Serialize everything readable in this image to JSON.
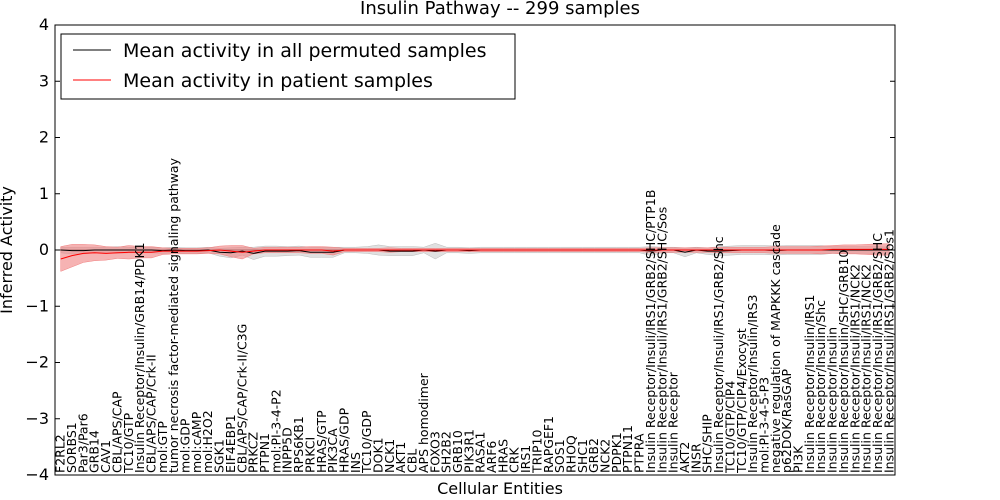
{
  "chart_data": {
    "type": "line",
    "title": "Insulin Pathway -- 299 samples",
    "xlabel": "Cellular Entities",
    "ylabel": "Inferred Activity",
    "ylim": [
      -4,
      4
    ],
    "yticks": [
      -4,
      -3,
      -2,
      -1,
      0,
      1,
      2,
      3,
      4
    ],
    "ytick_labels": [
      "−4",
      "−3",
      "−2",
      "−1",
      "0",
      "1",
      "2",
      "3",
      "4"
    ],
    "legend_position": "top-left",
    "categories": [
      "F2RL2",
      "SORBS1",
      "Par3/Par6",
      "GRB14",
      "CAV1",
      "CBL/APS/CAP",
      "TC10/GTP",
      "Insulin Receptor/Insulin/GRB14/PDK1",
      "CBL/APS/CAP/Crk-II",
      "mol:GTP",
      "tumor necrosis factor-mediated signaling pathway",
      "mol:GDP",
      "mol:cAMP",
      "mol:H2O2",
      "SGK1",
      "EIF4EBP1",
      "CBL/APS/CAP/Crk-II/C3G",
      "PRKCZ",
      "PTPN1",
      "mol:PI-3-4-P2",
      "INPP5D",
      "RPS6KB1",
      "PRKCI",
      "HRAS/GTP",
      "PIK3CA",
      "HRAS/GDP",
      "INS",
      "TC10/GDP",
      "DOK1",
      "NCK1",
      "AKT1",
      "CBL",
      "APS homodimer",
      "FOXO3",
      "SH2B2",
      "GRB10",
      "PIK3R1",
      "RASA1",
      "ARF6",
      "HRAS",
      "CRK",
      "IRS1",
      "TRIP10",
      "RAPGEF1",
      "SOS1",
      "RHOQ",
      "SHC1",
      "GRB2",
      "NCK2",
      "PDPK1",
      "PTPN11",
      "PTPRA",
      "Insulin Receptor/Insuli/IRS1/GRB2/SHC/PTP1B",
      "Insulin Receptor/Insuli/IRS1/GRB2/SHC/Sos",
      "Insulin Receptor",
      "AKT2",
      "INSR",
      "SHC/SHIP",
      "Insulin Receptor/Insuli/IRS1/GRB2/Shc",
      "TC10/GTP/CIP4",
      "TC10/GTP/CIP4/Exocyst",
      "Insulin Receptor/Insulin/IRS3",
      "mol:PI-3-4-5-P3",
      "negative regulation of MAPKKK cascade",
      "p62DOK/RasGAP",
      "PI3K",
      "Insulin Receptor/Insulin/IRS1",
      "Insulin Receptor/Insulin/Shc",
      "Insulin Receptor/Insulin",
      "Insulin Receptor/Insulin/SHC/GRB10",
      "Insulin Receptor/Insuli/IRS1/NCK2",
      "Insulin Receptor/Insuli/IRS1/NCK2",
      "Insulin Receptor/Insuli/IRS1/GRB2/SHC",
      "Insulin Receptor/Insuli/IRS1/GRB2/Sos1"
    ],
    "series": [
      {
        "name": "Mean activity in all permuted samples",
        "color": "#000000",
        "band_color": "#bbbbbb",
        "values": [
          0.0,
          -0.01,
          -0.01,
          0.0,
          0.0,
          0.0,
          0.0,
          0.0,
          0.0,
          -0.01,
          0.0,
          -0.01,
          -0.01,
          0.0,
          -0.04,
          -0.05,
          -0.02,
          -0.06,
          -0.02,
          -0.02,
          -0.02,
          -0.01,
          -0.04,
          -0.04,
          -0.04,
          0.0,
          0.0,
          0.0,
          0.0,
          -0.02,
          -0.02,
          -0.02,
          0.0,
          -0.02,
          0.0,
          0.0,
          -0.01,
          0.0,
          0.0,
          0.0,
          0.0,
          0.0,
          0.0,
          0.0,
          0.0,
          0.0,
          0.0,
          0.0,
          0.0,
          0.0,
          0.0,
          0.0,
          -0.02,
          0.0,
          0.0,
          -0.04,
          0.0,
          -0.02,
          -0.02,
          -0.01,
          0.0,
          0.0,
          0.0,
          -0.01,
          0.0,
          0.0,
          0.0,
          0.0,
          0.0,
          0.0,
          0.0,
          0.0,
          0.0,
          0.0
        ],
        "band": [
          0.05,
          0.06,
          0.06,
          0.05,
          0.05,
          0.06,
          0.05,
          0.05,
          0.05,
          0.05,
          0.05,
          0.05,
          0.05,
          0.05,
          0.07,
          0.09,
          0.07,
          0.11,
          0.09,
          0.09,
          0.08,
          0.08,
          0.09,
          0.09,
          0.09,
          0.05,
          0.05,
          0.06,
          0.09,
          0.08,
          0.08,
          0.08,
          0.05,
          0.14,
          0.05,
          0.05,
          0.05,
          0.05,
          0.05,
          0.05,
          0.05,
          0.05,
          0.05,
          0.05,
          0.05,
          0.05,
          0.05,
          0.05,
          0.05,
          0.05,
          0.05,
          0.05,
          0.08,
          0.05,
          0.05,
          0.08,
          0.05,
          0.06,
          0.08,
          0.08,
          0.08,
          0.08,
          0.08,
          0.08,
          0.08,
          0.08,
          0.08,
          0.08,
          0.06,
          0.06,
          0.06,
          0.06,
          0.06,
          0.05
        ]
      },
      {
        "name": "Mean activity in patient samples",
        "color": "#ff0000",
        "band_color": "#f08080",
        "values": [
          -0.16,
          -0.1,
          -0.06,
          -0.05,
          -0.06,
          -0.05,
          -0.04,
          -0.04,
          -0.04,
          -0.02,
          -0.02,
          -0.02,
          -0.02,
          -0.01,
          0.0,
          -0.02,
          -0.04,
          -0.02,
          0.0,
          0.0,
          0.0,
          0.0,
          0.0,
          0.0,
          -0.02,
          0.0,
          0.0,
          0.0,
          0.0,
          0.0,
          0.0,
          0.0,
          0.0,
          0.0,
          0.0,
          0.0,
          0.0,
          0.0,
          0.0,
          0.0,
          0.0,
          0.0,
          0.0,
          0.0,
          0.0,
          0.0,
          0.0,
          0.0,
          0.0,
          0.0,
          0.0,
          0.0,
          0.0,
          0.0,
          0.0,
          0.0,
          0.0,
          0.0,
          0.0,
          0.0,
          0.0,
          0.0,
          0.0,
          0.0,
          0.0,
          0.0,
          0.0,
          0.0,
          0.01,
          0.01,
          0.01,
          0.01,
          0.01,
          0.01
        ],
        "band": [
          0.22,
          0.2,
          0.16,
          0.14,
          0.12,
          0.1,
          0.12,
          0.1,
          0.1,
          0.06,
          0.05,
          0.05,
          0.05,
          0.05,
          0.07,
          0.1,
          0.12,
          0.05,
          0.05,
          0.05,
          0.05,
          0.05,
          0.06,
          0.06,
          0.07,
          0.03,
          0.03,
          0.03,
          0.03,
          0.04,
          0.03,
          0.03,
          0.03,
          0.03,
          0.03,
          0.03,
          0.03,
          0.03,
          0.03,
          0.03,
          0.03,
          0.03,
          0.03,
          0.03,
          0.03,
          0.03,
          0.03,
          0.03,
          0.03,
          0.03,
          0.03,
          0.03,
          0.04,
          0.04,
          0.04,
          0.04,
          0.04,
          0.04,
          0.05,
          0.05,
          0.05,
          0.05,
          0.05,
          0.06,
          0.06,
          0.06,
          0.06,
          0.07,
          0.07,
          0.08,
          0.08,
          0.09,
          0.1,
          0.1
        ]
      }
    ]
  }
}
